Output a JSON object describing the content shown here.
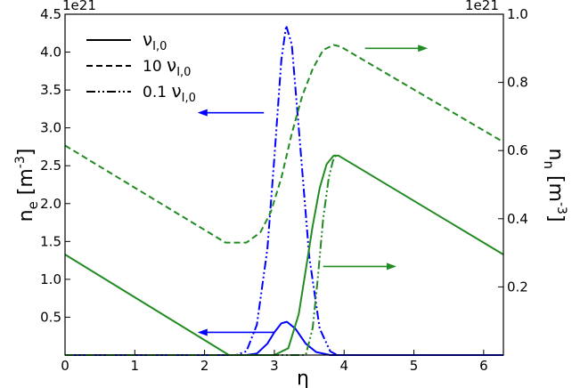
{
  "chart_data": {
    "type": "line",
    "title": "",
    "xlabel": "η",
    "xlim": [
      0,
      6.283
    ],
    "xticks": [
      "0",
      "1",
      "2",
      "3",
      "4",
      "5",
      "6"
    ],
    "left_axis": {
      "label_main": "n",
      "label_sub": "e",
      "label_unit": "[m",
      "label_exp": "-3",
      "label_close": "]",
      "offset_text": "1e21",
      "ylim": [
        0,
        4.5
      ],
      "ticks": [
        "0.5",
        "1.0",
        "1.5",
        "2.0",
        "2.5",
        "3.0",
        "3.5",
        "4.0",
        "4.5"
      ]
    },
    "right_axis": {
      "label_main": "n",
      "label_sub": "n",
      "label_unit": "[m",
      "label_exp": "-3",
      "label_close": "]",
      "offset_text": "1e21",
      "ylim": [
        0,
        1.0
      ],
      "ticks": [
        "0.2",
        "0.4",
        "0.6",
        "0.8",
        "1.0"
      ]
    },
    "legend": {
      "placement": "top-left",
      "entries": [
        {
          "style": "solid",
          "pre": "",
          "sym": "ν",
          "sub": "I,0"
        },
        {
          "style": "dashed",
          "pre": "10 ",
          "sym": "ν",
          "sub": "I,0"
        },
        {
          "style": "dashdot",
          "pre": "0.1 ",
          "sym": "ν",
          "sub": "I,0"
        }
      ]
    },
    "colors": {
      "ne": "#0000ff",
      "nn": "#228b22"
    },
    "series": [
      {
        "quantity": "ne",
        "axis": "left",
        "style": "solid",
        "x": [
          0,
          2.6,
          2.75,
          2.9,
          3.0,
          3.1,
          3.18,
          3.3,
          3.45,
          3.6,
          3.8,
          6.283
        ],
        "y": [
          0,
          0,
          0.02,
          0.15,
          0.3,
          0.42,
          0.44,
          0.35,
          0.15,
          0.04,
          0,
          0
        ]
      },
      {
        "quantity": "ne",
        "axis": "left",
        "style": "dashdot",
        "x": [
          0,
          2.45,
          2.6,
          2.75,
          2.9,
          3.0,
          3.1,
          3.17,
          3.25,
          3.35,
          3.5,
          3.65,
          3.8,
          3.9,
          6.283
        ],
        "y": [
          0,
          0,
          0.05,
          0.4,
          1.4,
          2.6,
          3.9,
          4.35,
          4.1,
          3.0,
          1.3,
          0.35,
          0.05,
          0,
          0
        ]
      },
      {
        "quantity": "nn",
        "axis": "right",
        "style": "solid",
        "x": [
          0,
          2.35,
          3.0,
          3.2,
          3.35,
          3.45,
          3.55,
          3.65,
          3.75,
          3.85,
          3.92,
          6.283
        ],
        "y": [
          0.295,
          0.0,
          0.0,
          0.02,
          0.12,
          0.25,
          0.38,
          0.49,
          0.56,
          0.585,
          0.585,
          0.295
        ]
      },
      {
        "quantity": "nn",
        "axis": "right",
        "style": "dashed",
        "x": [
          0,
          2.3,
          2.6,
          2.8,
          2.95,
          3.1,
          3.25,
          3.4,
          3.55,
          3.7,
          3.85,
          3.95,
          6.283
        ],
        "y": [
          0.615,
          0.33,
          0.33,
          0.36,
          0.42,
          0.52,
          0.65,
          0.76,
          0.84,
          0.895,
          0.91,
          0.905,
          0.625
        ]
      },
      {
        "quantity": "nn",
        "axis": "right",
        "style": "dashdot",
        "x": [
          0,
          3.45,
          3.55,
          3.62,
          3.7,
          3.78,
          3.84,
          3.88,
          3.92
        ],
        "y": [
          0,
          0,
          0.08,
          0.22,
          0.4,
          0.52,
          0.57,
          0.585,
          0.585
        ]
      }
    ],
    "annotations": [
      {
        "kind": "arrow",
        "color": "ne",
        "direction": "left",
        "from": [
          2.85,
          3.2
        ],
        "to": [
          1.9,
          3.2
        ],
        "axis": "left"
      },
      {
        "kind": "arrow",
        "color": "nn",
        "direction": "right",
        "from": [
          4.3,
          0.9
        ],
        "to": [
          5.2,
          0.9
        ],
        "axis": "right"
      },
      {
        "kind": "arrow",
        "color": "ne",
        "direction": "left",
        "from": [
          3.0,
          0.3
        ],
        "to": [
          1.9,
          0.3
        ],
        "axis": "left"
      },
      {
        "kind": "arrow",
        "color": "nn",
        "direction": "right",
        "from": [
          3.7,
          0.26
        ],
        "to": [
          4.75,
          0.26
        ],
        "axis": "right"
      }
    ],
    "grid": false
  }
}
